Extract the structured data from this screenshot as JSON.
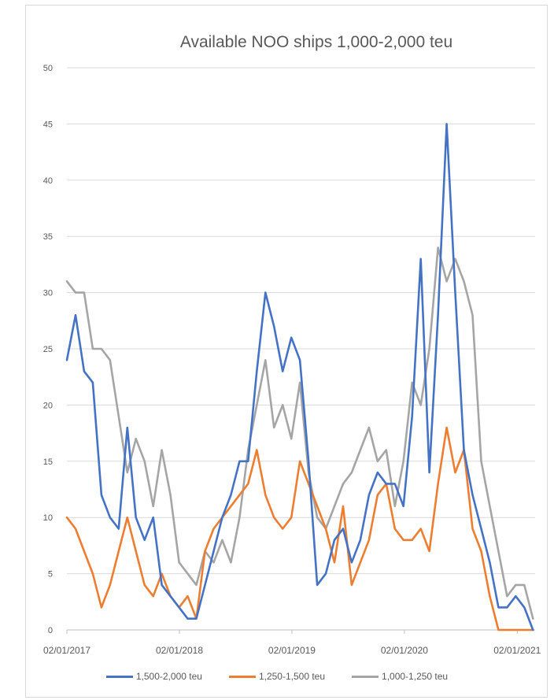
{
  "chart_data": {
    "type": "line",
    "title": "Available NOO ships 1,000-2,000 teu",
    "xlabel": "",
    "ylabel": "",
    "ylim": [
      0,
      50
    ],
    "y_ticks": [
      "0",
      "5",
      "10",
      "15",
      "20",
      "25",
      "30",
      "35",
      "40",
      "45",
      "50"
    ],
    "x_ticks": [
      "02/01/2017",
      "02/01/2018",
      "02/01/2019",
      "02/01/2020",
      "02/01/2021"
    ],
    "x_range": [
      "2017-01-02",
      "2021-03-01"
    ],
    "grid": "horizontal",
    "legend_position": "bottom",
    "x": [
      "2017-01-02",
      "2017-01-30",
      "2017-02-27",
      "2017-03-27",
      "2017-04-24",
      "2017-05-22",
      "2017-06-19",
      "2017-07-17",
      "2017-08-14",
      "2017-09-11",
      "2017-10-09",
      "2017-11-06",
      "2017-12-04",
      "2018-01-01",
      "2018-01-29",
      "2018-02-26",
      "2018-03-26",
      "2018-04-23",
      "2018-05-21",
      "2018-06-18",
      "2018-07-16",
      "2018-08-13",
      "2018-09-10",
      "2018-10-08",
      "2018-11-05",
      "2018-12-03",
      "2018-12-31",
      "2019-01-28",
      "2019-02-25",
      "2019-03-25",
      "2019-04-22",
      "2019-05-20",
      "2019-06-17",
      "2019-07-15",
      "2019-08-12",
      "2019-09-09",
      "2019-10-07",
      "2019-11-04",
      "2019-12-02",
      "2019-12-30",
      "2020-01-27",
      "2020-02-24",
      "2020-03-23",
      "2020-04-20",
      "2020-05-18",
      "2020-06-15",
      "2020-07-13",
      "2020-08-10",
      "2020-09-07",
      "2020-10-05",
      "2020-11-02",
      "2020-11-30",
      "2020-12-28",
      "2021-01-25",
      "2021-02-22"
    ],
    "series": [
      {
        "name": "1,500-2,000 teu",
        "color": "#4472c4",
        "values": [
          24,
          28,
          23,
          22,
          12,
          10,
          9,
          18,
          10,
          8,
          10,
          4,
          3,
          2,
          1,
          1,
          4,
          7,
          10,
          12,
          15,
          15,
          23,
          30,
          27,
          23,
          26,
          24,
          15,
          4,
          5,
          8,
          9,
          6,
          8,
          12,
          14,
          13,
          13,
          11,
          19,
          33,
          14,
          28,
          45,
          30,
          16,
          12,
          9,
          6,
          2,
          2,
          3,
          2,
          0
        ]
      },
      {
        "name": "1,250-1,500 teu",
        "color": "#ed7d31",
        "values": [
          10,
          9,
          7,
          5,
          2,
          4,
          7,
          10,
          7,
          4,
          3,
          5,
          3,
          2,
          3,
          1,
          7,
          9,
          10,
          11,
          12,
          13,
          16,
          12,
          10,
          9,
          10,
          15,
          13,
          11,
          9,
          6,
          11,
          4,
          6,
          8,
          12,
          13,
          9,
          8,
          8,
          9,
          7,
          13,
          18,
          14,
          16,
          9,
          7,
          3,
          0,
          0,
          0,
          0,
          0
        ]
      },
      {
        "name": "1,000-1,250 teu",
        "color": "#a5a5a5",
        "values": [
          31,
          30,
          30,
          25,
          25,
          24,
          19,
          14,
          17,
          15,
          11,
          16,
          12,
          6,
          5,
          4,
          7,
          6,
          8,
          6,
          10,
          16,
          20,
          24,
          18,
          20,
          17,
          22,
          14,
          10,
          9,
          11,
          13,
          14,
          16,
          18,
          15,
          16,
          11,
          15,
          22,
          20,
          25,
          34,
          31,
          33,
          31,
          28,
          15,
          11,
          7,
          3,
          4,
          4,
          1
        ]
      }
    ]
  }
}
